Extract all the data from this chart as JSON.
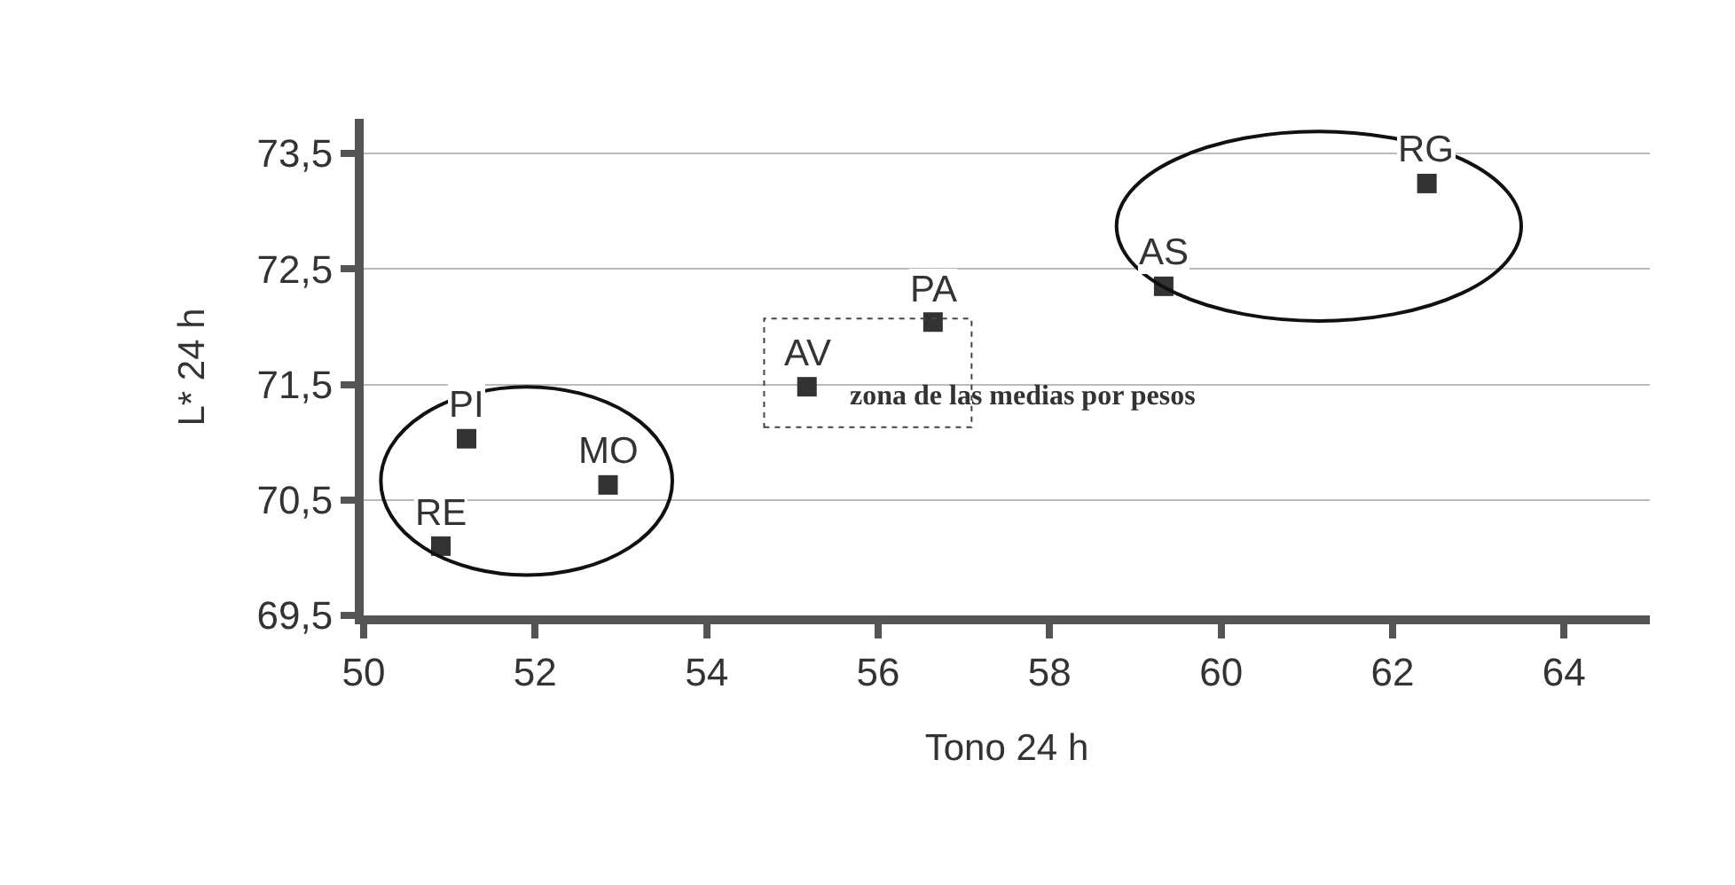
{
  "chart_data": {
    "type": "scatter",
    "xlabel": "Tono 24 h",
    "ylabel": "L* 24 h",
    "xlim": [
      50,
      65
    ],
    "xticks": [
      50,
      52,
      54,
      56,
      58,
      60,
      62,
      64
    ],
    "ylim": [
      69.5,
      73.8
    ],
    "yticks": [
      {
        "value": 69.5,
        "label": "69,5"
      },
      {
        "value": 70.5,
        "label": "70,5"
      },
      {
        "value": 71.5,
        "label": "71,5"
      },
      {
        "value": 72.5,
        "label": "72,5"
      },
      {
        "value": 73.5,
        "label": "73,5"
      }
    ],
    "grid": "y",
    "legend": false,
    "marker": "square",
    "annotations": [
      "zona de las medias por pesos"
    ],
    "series": [
      {
        "name": "RE",
        "color": "#333333",
        "x": [
          50.9
        ],
        "values": [
          70.1
        ]
      },
      {
        "name": "PI",
        "color": "#333333",
        "x": [
          51.2
        ],
        "values": [
          71.03
        ]
      },
      {
        "name": "MO",
        "color": "#333333",
        "x": [
          52.85
        ],
        "values": [
          70.63
        ]
      },
      {
        "name": "AV",
        "color": "#333333",
        "x": [
          55.17
        ],
        "values": [
          71.48
        ]
      },
      {
        "name": "PA",
        "color": "#333333",
        "x": [
          56.64
        ],
        "values": [
          72.04
        ]
      },
      {
        "name": "AS",
        "color": "#333333",
        "x": [
          59.33
        ],
        "values": [
          72.35
        ]
      },
      {
        "name": "RG",
        "color": "#333333",
        "x": [
          62.4
        ],
        "values": [
          73.24
        ]
      }
    ]
  }
}
